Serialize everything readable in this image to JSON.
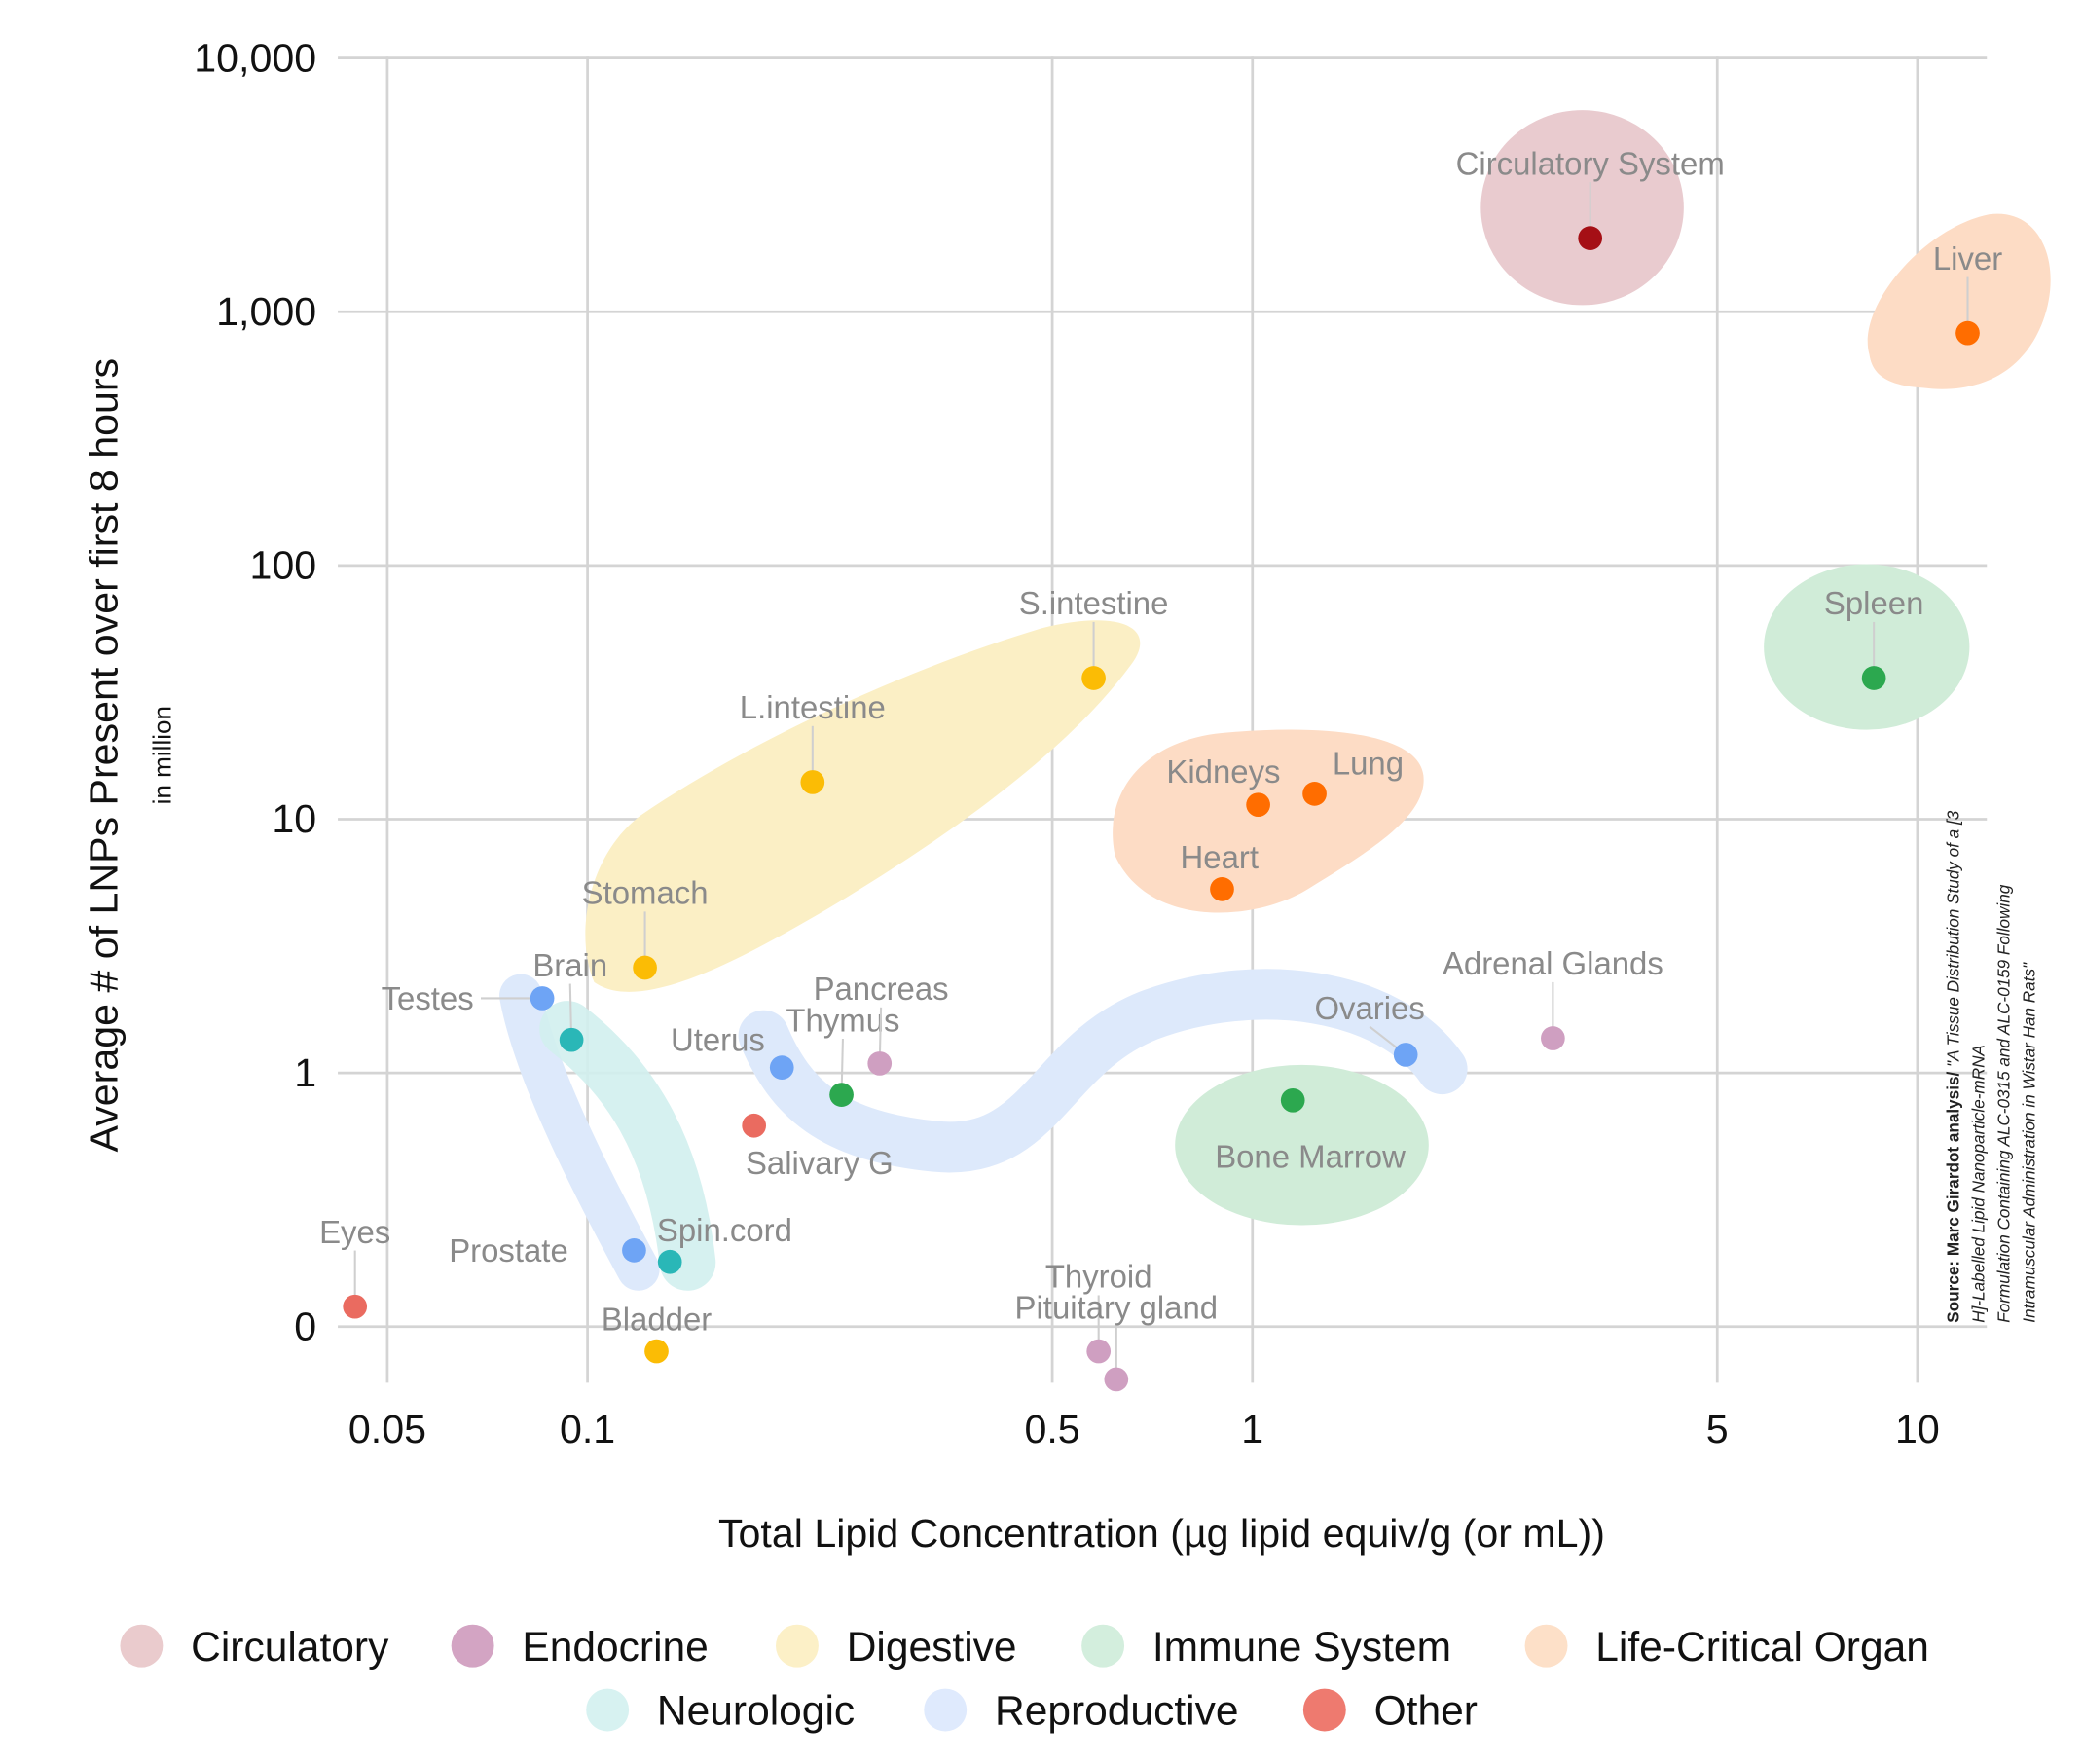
{
  "chart_data": {
    "type": "scatter",
    "xlabel": "Total Lipid Concentration (µg lipid equiv/g (or mL))",
    "ylabel": "Average # of LNPs Present over first 8 hours",
    "ylabel_sub": "in million",
    "x_scale": "log",
    "y_scale": "log",
    "xlim": [
      0.04,
      14
    ],
    "ylim": [
      0.06,
      10000
    ],
    "x_ticks": [
      {
        "value": 0.05,
        "label": "0.05"
      },
      {
        "value": 0.1,
        "label": "0.1"
      },
      {
        "value": 0.5,
        "label": "0.5"
      },
      {
        "value": 1,
        "label": "1"
      },
      {
        "value": 5,
        "label": "5"
      },
      {
        "value": 10,
        "label": "10"
      }
    ],
    "y_ticks": [
      {
        "value": 10000,
        "label": "10,000"
      },
      {
        "value": 1000,
        "label": "1,000"
      },
      {
        "value": 100,
        "label": "100"
      },
      {
        "value": 10,
        "label": "10"
      },
      {
        "value": 1,
        "label": "1"
      },
      {
        "value": 0.1,
        "label": "0"
      }
    ],
    "grid": true,
    "legend_placement": "bottom",
    "categories": [
      {
        "name": "Circulatory",
        "legend_color": "#eacbcd",
        "point_color": "#a50f15"
      },
      {
        "name": "Endocrine",
        "legend_color": "#d3a4c3",
        "point_color": "#cf9fc1"
      },
      {
        "name": "Digestive",
        "legend_color": "#fcf0c7",
        "point_color": "#fbbc05"
      },
      {
        "name": "Immune System",
        "legend_color": "#d3eedd",
        "point_color": "#2ca84f"
      },
      {
        "name": "Life-Critical Organ",
        "legend_color": "#fde0c8",
        "point_color": "#ff6d00"
      },
      {
        "name": "Neurologic",
        "legend_color": "#d7f2f1",
        "point_color": "#2ab7b7"
      },
      {
        "name": "Reproductive",
        "legend_color": "#dfeafd",
        "point_color": "#6ea4f5"
      },
      {
        "name": "Other",
        "legend_color": "#ee7a6f",
        "point_color": "#ea6b60"
      }
    ],
    "points": [
      {
        "label": "Circulatory System",
        "category": "Circulatory",
        "x": 3.22,
        "y": 1950
      },
      {
        "label": "Liver",
        "category": "Life-Critical Organ",
        "x": 11.9,
        "y": 824
      },
      {
        "label": "Spleen",
        "category": "Immune System",
        "x": 8.6,
        "y": 36
      },
      {
        "label": "S.intestine",
        "category": "Digestive",
        "x": 0.577,
        "y": 36
      },
      {
        "label": "L.intestine",
        "category": "Digestive",
        "x": 0.218,
        "y": 14
      },
      {
        "label": "Kidneys",
        "category": "Life-Critical Organ",
        "x": 1.02,
        "y": 11.4
      },
      {
        "label": "Lung",
        "category": "Life-Critical Organ",
        "x": 1.24,
        "y": 12.6
      },
      {
        "label": "Heart",
        "category": "Life-Critical Organ",
        "x": 0.9,
        "y": 5.3
      },
      {
        "label": "Stomach",
        "category": "Digestive",
        "x": 0.122,
        "y": 2.6
      },
      {
        "label": "Brain",
        "category": "Neurologic",
        "x": 0.0946,
        "y": 1.35
      },
      {
        "label": "Testes",
        "category": "Reproductive",
        "x": 0.0855,
        "y": 1.97
      },
      {
        "label": "Uterus",
        "category": "Reproductive",
        "x": 0.196,
        "y": 1.05
      },
      {
        "label": "Thymus",
        "category": "Immune System",
        "x": 0.241,
        "y": 0.82
      },
      {
        "label": "Pancreas",
        "category": "Endocrine",
        "x": 0.275,
        "y": 1.09
      },
      {
        "label": "Salivary G",
        "category": "Other",
        "x": 0.178,
        "y": 0.62
      },
      {
        "label": "Ovaries",
        "category": "Reproductive",
        "x": 1.7,
        "y": 1.18
      },
      {
        "label": "Adrenal Glands",
        "category": "Endocrine",
        "x": 2.83,
        "y": 1.37
      },
      {
        "label": "Bone Marrow",
        "category": "Immune System",
        "x": 1.15,
        "y": 0.78
      },
      {
        "label": "Eyes",
        "category": "Other",
        "x": 0.0447,
        "y": 0.12
      },
      {
        "label": "Prostate",
        "category": "Reproductive",
        "x": 0.1175,
        "y": 0.2
      },
      {
        "label": "Spin.cord",
        "category": "Neurologic",
        "x": 0.133,
        "y": 0.18
      },
      {
        "label": "Bladder",
        "category": "Digestive",
        "x": 0.127,
        "y": 0.08
      },
      {
        "label": "Thyroid",
        "category": "Endocrine",
        "x": 0.587,
        "y": 0.08
      },
      {
        "label": "Pituitary gland",
        "category": "Endocrine",
        "x": 0.624,
        "y": 0.062
      }
    ],
    "source": {
      "bold": "Source: Marc Girardot analysis/",
      "lines": [
        "\"A Tissue Distribution Study of a [3",
        "H]-Labelled Lipid Nanoparticle-mRNA",
        "Formulation Containing ALC-0315 and ALC-0159 Following",
        "Intramuscular Administration in Wistar Han Rats\""
      ]
    }
  }
}
